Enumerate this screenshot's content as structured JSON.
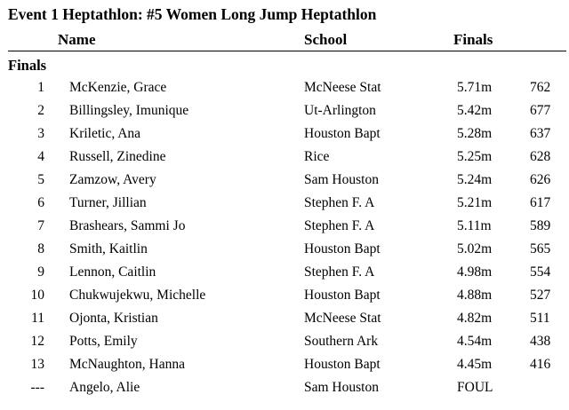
{
  "title": "Event 1  Heptathlon: #5 Women Long Jump Heptathlon",
  "headers": {
    "name": "Name",
    "school": "School",
    "finals": "Finals"
  },
  "section_label": "Finals",
  "results": [
    {
      "place": "1",
      "name": "McKenzie, Grace",
      "school": "McNeese Stat",
      "mark": "5.71m",
      "points": "762"
    },
    {
      "place": "2",
      "name": "Billingsley, Imunique",
      "school": "Ut-Arlington",
      "mark": "5.42m",
      "points": "677"
    },
    {
      "place": "3",
      "name": "Kriletic, Ana",
      "school": "Houston Bapt",
      "mark": "5.28m",
      "points": "637"
    },
    {
      "place": "4",
      "name": "Russell, Zinedine",
      "school": "Rice",
      "mark": "5.25m",
      "points": "628"
    },
    {
      "place": "5",
      "name": "Zamzow, Avery",
      "school": "Sam Houston",
      "mark": "5.24m",
      "points": "626"
    },
    {
      "place": "6",
      "name": "Turner, Jillian",
      "school": "Stephen F. A",
      "mark": "5.21m",
      "points": "617"
    },
    {
      "place": "7",
      "name": "Brashears, Sammi Jo",
      "school": "Stephen F. A",
      "mark": "5.11m",
      "points": "589"
    },
    {
      "place": "8",
      "name": "Smith, Kaitlin",
      "school": "Houston Bapt",
      "mark": "5.02m",
      "points": "565"
    },
    {
      "place": "9",
      "name": "Lennon, Caitlin",
      "school": "Stephen F. A",
      "mark": "4.98m",
      "points": "554"
    },
    {
      "place": "10",
      "name": "Chukwujekwu, Michelle",
      "school": "Houston Bapt",
      "mark": "4.88m",
      "points": "527"
    },
    {
      "place": "11",
      "name": "Ojonta, Kristian",
      "school": "McNeese Stat",
      "mark": "4.82m",
      "points": "511"
    },
    {
      "place": "12",
      "name": "Potts, Emily",
      "school": "Southern Ark",
      "mark": "4.54m",
      "points": "438"
    },
    {
      "place": "13",
      "name": "McNaughton, Hanna",
      "school": "Houston Bapt",
      "mark": "4.45m",
      "points": "416"
    },
    {
      "place": "---",
      "name": "Angelo, Alie",
      "school": "Sam Houston",
      "mark": "FOUL",
      "points": ""
    }
  ]
}
